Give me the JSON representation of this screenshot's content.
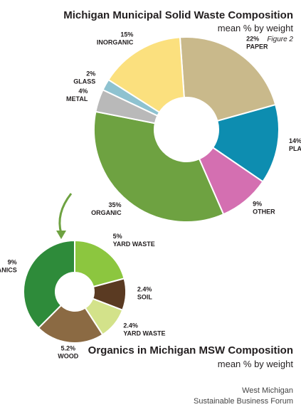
{
  "chart_data": [
    {
      "type": "donut",
      "title": "Michigan Municipal Solid Waste Composition",
      "subtitle": "mean % by weight",
      "note": "Figure 2",
      "categories": [
        "PAPER",
        "PLASTIC",
        "OTHER",
        "ORGANIC",
        "METAL",
        "GLASS",
        "INORGANIC"
      ],
      "values": [
        22,
        14,
        9,
        35,
        4,
        2,
        15
      ],
      "value_labels": [
        "22%",
        "14%",
        "9%",
        "35%",
        "4%",
        "2%",
        "15%"
      ],
      "colors": [
        "#c9b98b",
        "#0d8db0",
        "#d46fb1",
        "#6ea241",
        "#b9b9b9",
        "#8ec2d0",
        "#fbe07e"
      ]
    },
    {
      "type": "donut",
      "title": "Organics in Michigan MSW Composition",
      "subtitle": "mean % by weight",
      "categories": [
        "YARD WASTE",
        "SOIL",
        "YARD WASTE",
        "WOOD",
        "OTHER ORGANICS"
      ],
      "values": [
        5,
        2.4,
        2.4,
        5.2,
        9
      ],
      "value_labels": [
        "5%",
        "2.4%",
        "2.4%",
        "5.2%",
        "9%"
      ],
      "colors": [
        "#8cc63f",
        "#5a3a22",
        "#d3e28a",
        "#8b6a43",
        "#2e8b3a"
      ]
    }
  ],
  "source": [
    "West Michigan",
    "Sustainable Business Forum"
  ]
}
